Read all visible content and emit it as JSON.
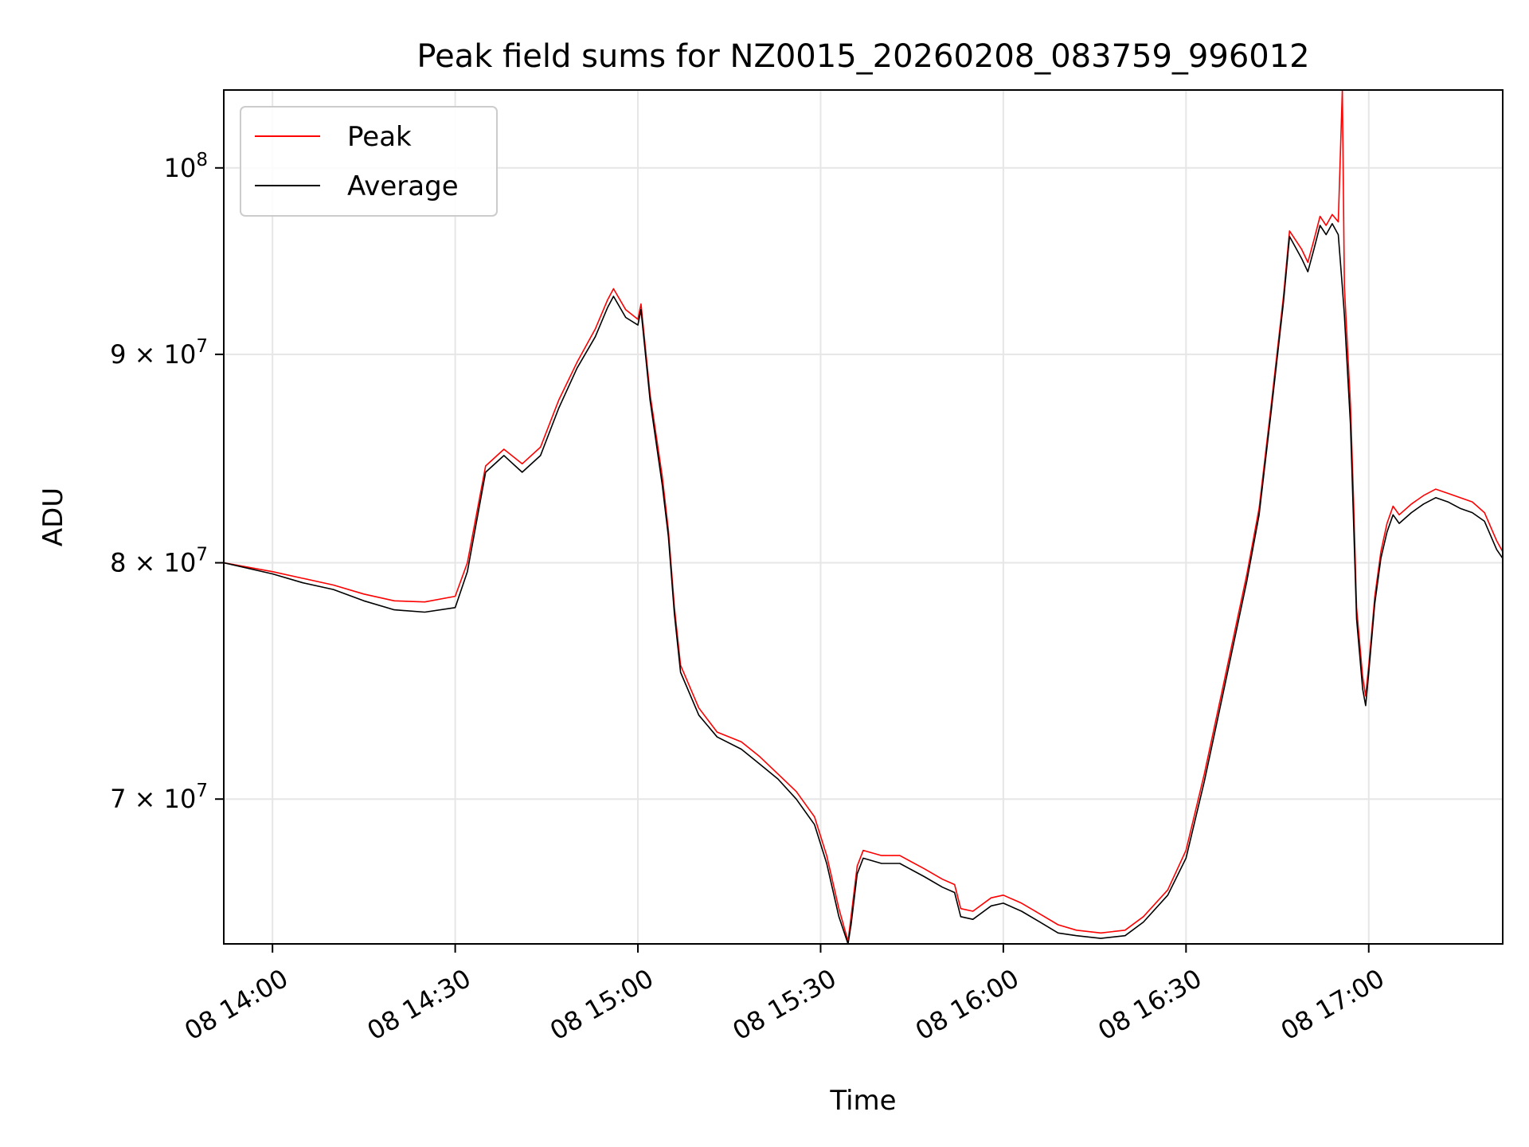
{
  "chart_data": {
    "type": "line",
    "title": "Peak field sums for NZ0015_20260208_083759_996012",
    "xlabel": "Time",
    "ylabel": "ADU",
    "x_axis": "time",
    "y_scale": "log",
    "xlim": [
      "2026-02-08 13:52",
      "2026-02-08 17:22"
    ],
    "ylim": [
      64500000,
      104500000
    ],
    "x_ticks": [
      {
        "t": "2026-02-08 14:00",
        "label": "08 14:00"
      },
      {
        "t": "2026-02-08 14:30",
        "label": "08 14:30"
      },
      {
        "t": "2026-02-08 15:00",
        "label": "08 15:00"
      },
      {
        "t": "2026-02-08 15:30",
        "label": "08 15:30"
      },
      {
        "t": "2026-02-08 16:00",
        "label": "08 16:00"
      },
      {
        "t": "2026-02-08 16:30",
        "label": "08 16:30"
      },
      {
        "t": "2026-02-08 17:00",
        "label": "08 17:00"
      }
    ],
    "y_ticks": [
      {
        "v": 70000000,
        "base": "7 × 10",
        "exp": "7"
      },
      {
        "v": 80000000,
        "base": "8 × 10",
        "exp": "7"
      },
      {
        "v": 90000000,
        "base": "9 × 10",
        "exp": "7"
      },
      {
        "v": 100000000,
        "base": "10",
        "exp": "8"
      }
    ],
    "grid": true,
    "legend_position": "top-left",
    "series": [
      {
        "name": "Peak",
        "color": "#ff0000",
        "points": [
          [
            "2026-02-08 13:52",
            80000000
          ],
          [
            "2026-02-08 14:00",
            79600000
          ],
          [
            "2026-02-08 14:05",
            79300000
          ],
          [
            "2026-02-08 14:10",
            79000000
          ],
          [
            "2026-02-08 14:15",
            78600000
          ],
          [
            "2026-02-08 14:20",
            78300000
          ],
          [
            "2026-02-08 14:25",
            78250000
          ],
          [
            "2026-02-08 14:30",
            78500000
          ],
          [
            "2026-02-08 14:32",
            80000000
          ],
          [
            "2026-02-08 14:35",
            84500000
          ],
          [
            "2026-02-08 14:38",
            85300000
          ],
          [
            "2026-02-08 14:41",
            84600000
          ],
          [
            "2026-02-08 14:44",
            85400000
          ],
          [
            "2026-02-08 14:47",
            87700000
          ],
          [
            "2026-02-08 14:50",
            89600000
          ],
          [
            "2026-02-08 14:53",
            91300000
          ],
          [
            "2026-02-08 14:55",
            92800000
          ],
          [
            "2026-02-08 14:56",
            93400000
          ],
          [
            "2026-02-08 14:58",
            92300000
          ],
          [
            "2026-02-08 15:00",
            91800000
          ],
          [
            "2026-02-08 15:00:30",
            92600000
          ],
          [
            "2026-02-08 15:02",
            88000000
          ],
          [
            "2026-02-08 15:04",
            84000000
          ],
          [
            "2026-02-08 15:05",
            81500000
          ],
          [
            "2026-02-08 15:06",
            78000000
          ],
          [
            "2026-02-08 15:07",
            75500000
          ],
          [
            "2026-02-08 15:10",
            73700000
          ],
          [
            "2026-02-08 15:13",
            72700000
          ],
          [
            "2026-02-08 15:17",
            72300000
          ],
          [
            "2026-02-08 15:20",
            71700000
          ],
          [
            "2026-02-08 15:23",
            71000000
          ],
          [
            "2026-02-08 15:26",
            70300000
          ],
          [
            "2026-02-08 15:29",
            69300000
          ],
          [
            "2026-02-08 15:31",
            67800000
          ],
          [
            "2026-02-08 15:33",
            65800000
          ],
          [
            "2026-02-08 15:34:30",
            64600000
          ],
          [
            "2026-02-08 15:35",
            65500000
          ],
          [
            "2026-02-08 15:36",
            67400000
          ],
          [
            "2026-02-08 15:37",
            68000000
          ],
          [
            "2026-02-08 15:40",
            67800000
          ],
          [
            "2026-02-08 15:43",
            67800000
          ],
          [
            "2026-02-08 15:47",
            67300000
          ],
          [
            "2026-02-08 15:50",
            66900000
          ],
          [
            "2026-02-08 15:52",
            66700000
          ],
          [
            "2026-02-08 15:53",
            65800000
          ],
          [
            "2026-02-08 15:55",
            65700000
          ],
          [
            "2026-02-08 15:58",
            66200000
          ],
          [
            "2026-02-08 16:00",
            66300000
          ],
          [
            "2026-02-08 16:03",
            66000000
          ],
          [
            "2026-02-08 16:06",
            65600000
          ],
          [
            "2026-02-08 16:09",
            65200000
          ],
          [
            "2026-02-08 16:12",
            65000000
          ],
          [
            "2026-02-08 16:16",
            64900000
          ],
          [
            "2026-02-08 16:20",
            65000000
          ],
          [
            "2026-02-08 16:23",
            65500000
          ],
          [
            "2026-02-08 16:27",
            66500000
          ],
          [
            "2026-02-08 16:30",
            68000000
          ],
          [
            "2026-02-08 16:33",
            71000000
          ],
          [
            "2026-02-08 16:36",
            74500000
          ],
          [
            "2026-02-08 16:40",
            79500000
          ],
          [
            "2026-02-08 16:42",
            82500000
          ],
          [
            "2026-02-08 16:44",
            87500000
          ],
          [
            "2026-02-08 16:46",
            93000000
          ],
          [
            "2026-02-08 16:47",
            96500000
          ],
          [
            "2026-02-08 16:49",
            95500000
          ],
          [
            "2026-02-08 16:50",
            94800000
          ],
          [
            "2026-02-08 16:51",
            96000000
          ],
          [
            "2026-02-08 16:52",
            97300000
          ],
          [
            "2026-02-08 16:53",
            96800000
          ],
          [
            "2026-02-08 16:54",
            97400000
          ],
          [
            "2026-02-08 16:55",
            97000000
          ],
          [
            "2026-02-08 16:55:40",
            104500000
          ],
          [
            "2026-02-08 16:56",
            93500000
          ],
          [
            "2026-02-08 16:57",
            87500000
          ],
          [
            "2026-02-08 16:57:30",
            83000000
          ],
          [
            "2026-02-08 16:58",
            78000000
          ],
          [
            "2026-02-08 16:59",
            75000000
          ],
          [
            "2026-02-08 16:59:30",
            74200000
          ],
          [
            "2026-02-08 17:00",
            75500000
          ],
          [
            "2026-02-08 17:01",
            78500000
          ],
          [
            "2026-02-08 17:02",
            80500000
          ],
          [
            "2026-02-08 17:03",
            81800000
          ],
          [
            "2026-02-08 17:04",
            82600000
          ],
          [
            "2026-02-08 17:05",
            82200000
          ],
          [
            "2026-02-08 17:07",
            82700000
          ],
          [
            "2026-02-08 17:09",
            83100000
          ],
          [
            "2026-02-08 17:11",
            83400000
          ],
          [
            "2026-02-08 17:13",
            83200000
          ],
          [
            "2026-02-08 17:15",
            83000000
          ],
          [
            "2026-02-08 17:17",
            82800000
          ],
          [
            "2026-02-08 17:19",
            82300000
          ],
          [
            "2026-02-08 17:21",
            81000000
          ],
          [
            "2026-02-08 17:22",
            80500000
          ]
        ]
      },
      {
        "name": "Average",
        "color": "#000000",
        "points": [
          [
            "2026-02-08 13:52",
            80000000
          ],
          [
            "2026-02-08 14:00",
            79500000
          ],
          [
            "2026-02-08 14:05",
            79100000
          ],
          [
            "2026-02-08 14:10",
            78800000
          ],
          [
            "2026-02-08 14:15",
            78300000
          ],
          [
            "2026-02-08 14:20",
            77900000
          ],
          [
            "2026-02-08 14:25",
            77800000
          ],
          [
            "2026-02-08 14:30",
            78000000
          ],
          [
            "2026-02-08 14:32",
            79600000
          ],
          [
            "2026-02-08 14:35",
            84200000
          ],
          [
            "2026-02-08 14:38",
            85000000
          ],
          [
            "2026-02-08 14:41",
            84200000
          ],
          [
            "2026-02-08 14:44",
            85000000
          ],
          [
            "2026-02-08 14:47",
            87300000
          ],
          [
            "2026-02-08 14:50",
            89300000
          ],
          [
            "2026-02-08 14:53",
            90900000
          ],
          [
            "2026-02-08 14:55",
            92400000
          ],
          [
            "2026-02-08 14:56",
            93000000
          ],
          [
            "2026-02-08 14:58",
            91900000
          ],
          [
            "2026-02-08 15:00",
            91500000
          ],
          [
            "2026-02-08 15:00:30",
            92300000
          ],
          [
            "2026-02-08 15:02",
            87700000
          ],
          [
            "2026-02-08 15:04",
            83600000
          ],
          [
            "2026-02-08 15:05",
            81200000
          ],
          [
            "2026-02-08 15:06",
            77700000
          ],
          [
            "2026-02-08 15:07",
            75200000
          ],
          [
            "2026-02-08 15:10",
            73400000
          ],
          [
            "2026-02-08 15:13",
            72500000
          ],
          [
            "2026-02-08 15:17",
            72000000
          ],
          [
            "2026-02-08 15:20",
            71400000
          ],
          [
            "2026-02-08 15:23",
            70800000
          ],
          [
            "2026-02-08 15:26",
            70000000
          ],
          [
            "2026-02-08 15:29",
            69000000
          ],
          [
            "2026-02-08 15:31",
            67500000
          ],
          [
            "2026-02-08 15:33",
            65500000
          ],
          [
            "2026-02-08 15:34:30",
            64500000
          ],
          [
            "2026-02-08 15:35",
            65200000
          ],
          [
            "2026-02-08 15:36",
            67100000
          ],
          [
            "2026-02-08 15:37",
            67700000
          ],
          [
            "2026-02-08 15:40",
            67500000
          ],
          [
            "2026-02-08 15:43",
            67500000
          ],
          [
            "2026-02-08 15:47",
            67000000
          ],
          [
            "2026-02-08 15:50",
            66600000
          ],
          [
            "2026-02-08 15:52",
            66400000
          ],
          [
            "2026-02-08 15:53",
            65500000
          ],
          [
            "2026-02-08 15:55",
            65400000
          ],
          [
            "2026-02-08 15:58",
            65900000
          ],
          [
            "2026-02-08 16:00",
            66000000
          ],
          [
            "2026-02-08 16:03",
            65700000
          ],
          [
            "2026-02-08 16:06",
            65300000
          ],
          [
            "2026-02-08 16:09",
            64900000
          ],
          [
            "2026-02-08 16:12",
            64800000
          ],
          [
            "2026-02-08 16:16",
            64700000
          ],
          [
            "2026-02-08 16:20",
            64800000
          ],
          [
            "2026-02-08 16:23",
            65300000
          ],
          [
            "2026-02-08 16:27",
            66300000
          ],
          [
            "2026-02-08 16:30",
            67700000
          ],
          [
            "2026-02-08 16:33",
            70700000
          ],
          [
            "2026-02-08 16:36",
            74200000
          ],
          [
            "2026-02-08 16:40",
            79200000
          ],
          [
            "2026-02-08 16:42",
            82200000
          ],
          [
            "2026-02-08 16:44",
            87200000
          ],
          [
            "2026-02-08 16:46",
            92700000
          ],
          [
            "2026-02-08 16:47",
            96200000
          ],
          [
            "2026-02-08 16:49",
            95000000
          ],
          [
            "2026-02-08 16:50",
            94300000
          ],
          [
            "2026-02-08 16:51",
            95500000
          ],
          [
            "2026-02-08 16:52",
            96800000
          ],
          [
            "2026-02-08 16:53",
            96300000
          ],
          [
            "2026-02-08 16:54",
            96900000
          ],
          [
            "2026-02-08 16:55",
            96300000
          ],
          [
            "2026-02-08 16:55:40",
            93500000
          ],
          [
            "2026-02-08 16:56",
            92000000
          ],
          [
            "2026-02-08 16:57",
            86500000
          ],
          [
            "2026-02-08 16:57:30",
            82000000
          ],
          [
            "2026-02-08 16:58",
            77500000
          ],
          [
            "2026-02-08 16:59",
            74500000
          ],
          [
            "2026-02-08 16:59:30",
            73800000
          ],
          [
            "2026-02-08 17:00",
            75200000
          ],
          [
            "2026-02-08 17:01",
            78200000
          ],
          [
            "2026-02-08 17:02",
            80200000
          ],
          [
            "2026-02-08 17:03",
            81400000
          ],
          [
            "2026-02-08 17:04",
            82200000
          ],
          [
            "2026-02-08 17:05",
            81800000
          ],
          [
            "2026-02-08 17:07",
            82300000
          ],
          [
            "2026-02-08 17:09",
            82700000
          ],
          [
            "2026-02-08 17:11",
            83000000
          ],
          [
            "2026-02-08 17:13",
            82800000
          ],
          [
            "2026-02-08 17:15",
            82500000
          ],
          [
            "2026-02-08 17:17",
            82300000
          ],
          [
            "2026-02-08 17:19",
            81900000
          ],
          [
            "2026-02-08 17:21",
            80600000
          ],
          [
            "2026-02-08 17:22",
            80200000
          ]
        ]
      }
    ]
  }
}
